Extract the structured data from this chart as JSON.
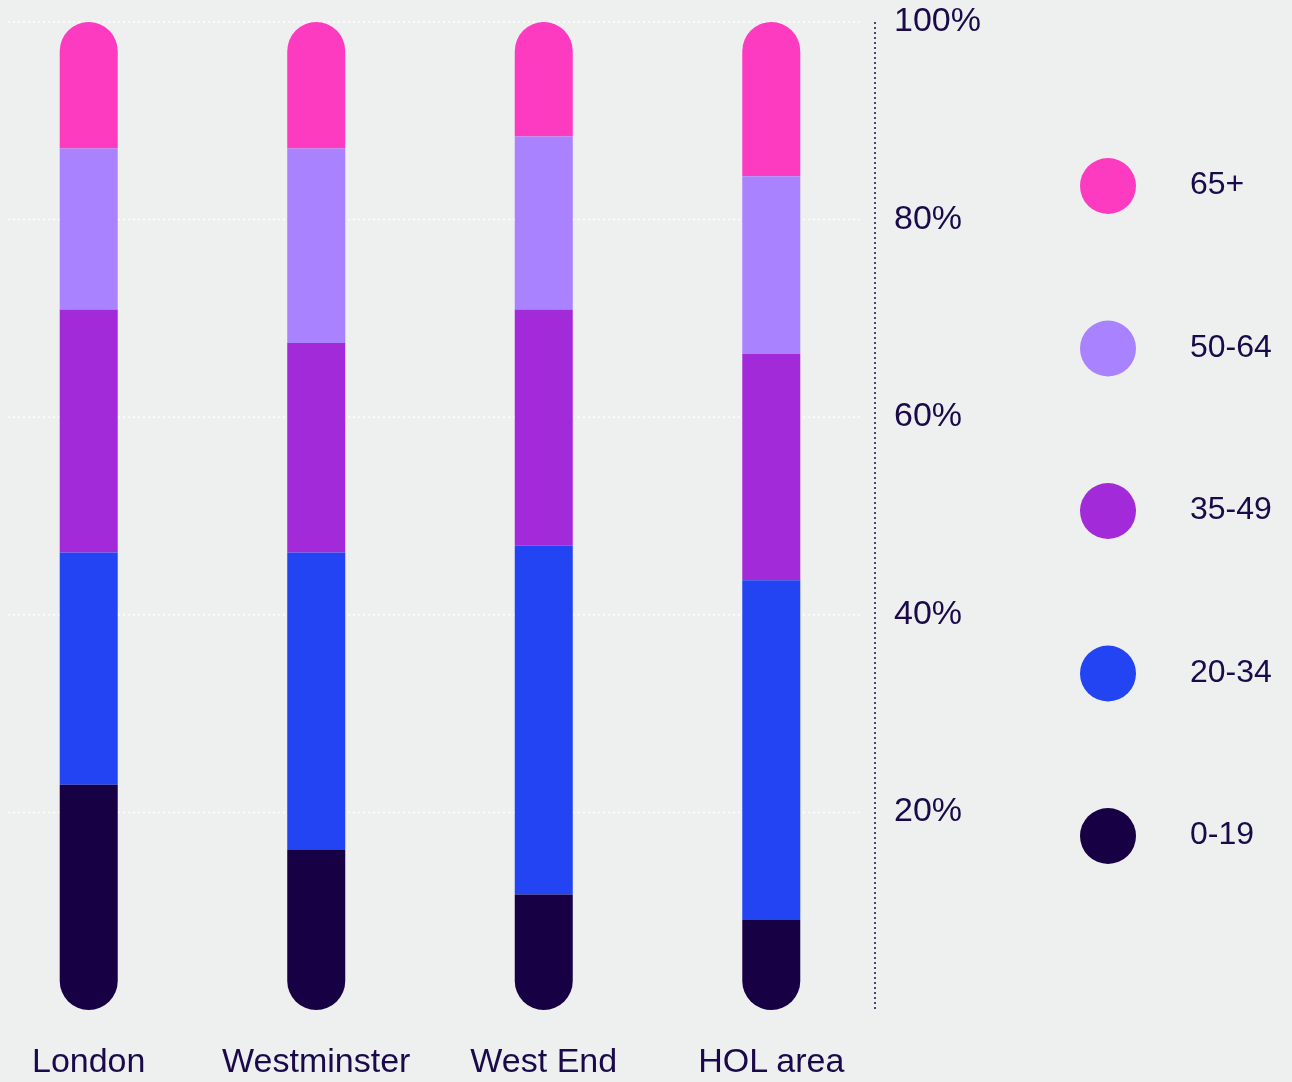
{
  "chart_data": {
    "type": "bar",
    "stacked": true,
    "categories": [
      "London",
      "Westminster",
      "West End",
      "HOL area"
    ],
    "series": [
      {
        "name": "0-19",
        "color": "#170044",
        "values": [
          22.8,
          16.2,
          11.7,
          9.1
        ]
      },
      {
        "name": "20-34",
        "color": "#2344f2",
        "values": [
          23.5,
          30.1,
          35.3,
          34.4
        ]
      },
      {
        "name": "35-49",
        "color": "#a22ad9",
        "values": [
          24.6,
          21.2,
          23.9,
          22.9
        ]
      },
      {
        "name": "50-64",
        "color": "#a882ff",
        "values": [
          16.3,
          19.7,
          17.5,
          18.0
        ]
      },
      {
        "name": "65+",
        "color": "#fc3bc0",
        "values": [
          12.8,
          12.8,
          11.6,
          15.6
        ]
      }
    ],
    "ylim": [
      0,
      100
    ],
    "yticks": [
      {
        "value": 20,
        "label": "20%"
      },
      {
        "value": 40,
        "label": "40%"
      },
      {
        "value": 60,
        "label": "60%"
      },
      {
        "value": 80,
        "label": "80%"
      },
      {
        "value": 100,
        "label": "100%"
      }
    ],
    "grid": "y",
    "legend": "right"
  }
}
